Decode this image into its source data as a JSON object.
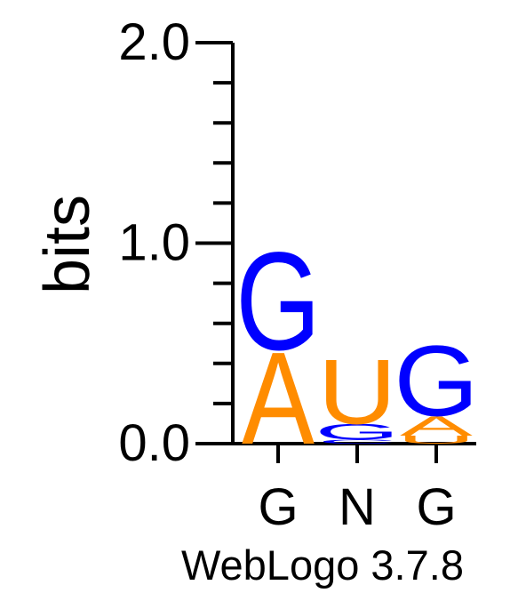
{
  "chart_data": {
    "type": "sequence-logo",
    "ylabel": "bits",
    "ylim": [
      0,
      2.0
    ],
    "y_ticks": [
      "0.0",
      "1.0",
      "2.0"
    ],
    "positions": [
      "G",
      "N",
      "G"
    ],
    "colors": {
      "G": "#0000ff",
      "A": "#ff8c00",
      "U": "#ff8c00",
      "C": "#0000ff"
    },
    "stacks": [
      {
        "position": "G",
        "letters": [
          {
            "letter": "A",
            "bits": 0.47
          },
          {
            "letter": "G",
            "bits": 0.5
          }
        ]
      },
      {
        "position": "N",
        "letters": [
          {
            "letter": "C",
            "bits": 0.02
          },
          {
            "letter": "G",
            "bits": 0.08
          },
          {
            "letter": "U",
            "bits": 0.33
          }
        ]
      },
      {
        "position": "G",
        "letters": [
          {
            "letter": "U",
            "bits": 0.04
          },
          {
            "letter": "A",
            "bits": 0.1
          },
          {
            "letter": "G",
            "bits": 0.36
          }
        ]
      }
    ]
  },
  "footer": "WebLogo 3.7.8"
}
